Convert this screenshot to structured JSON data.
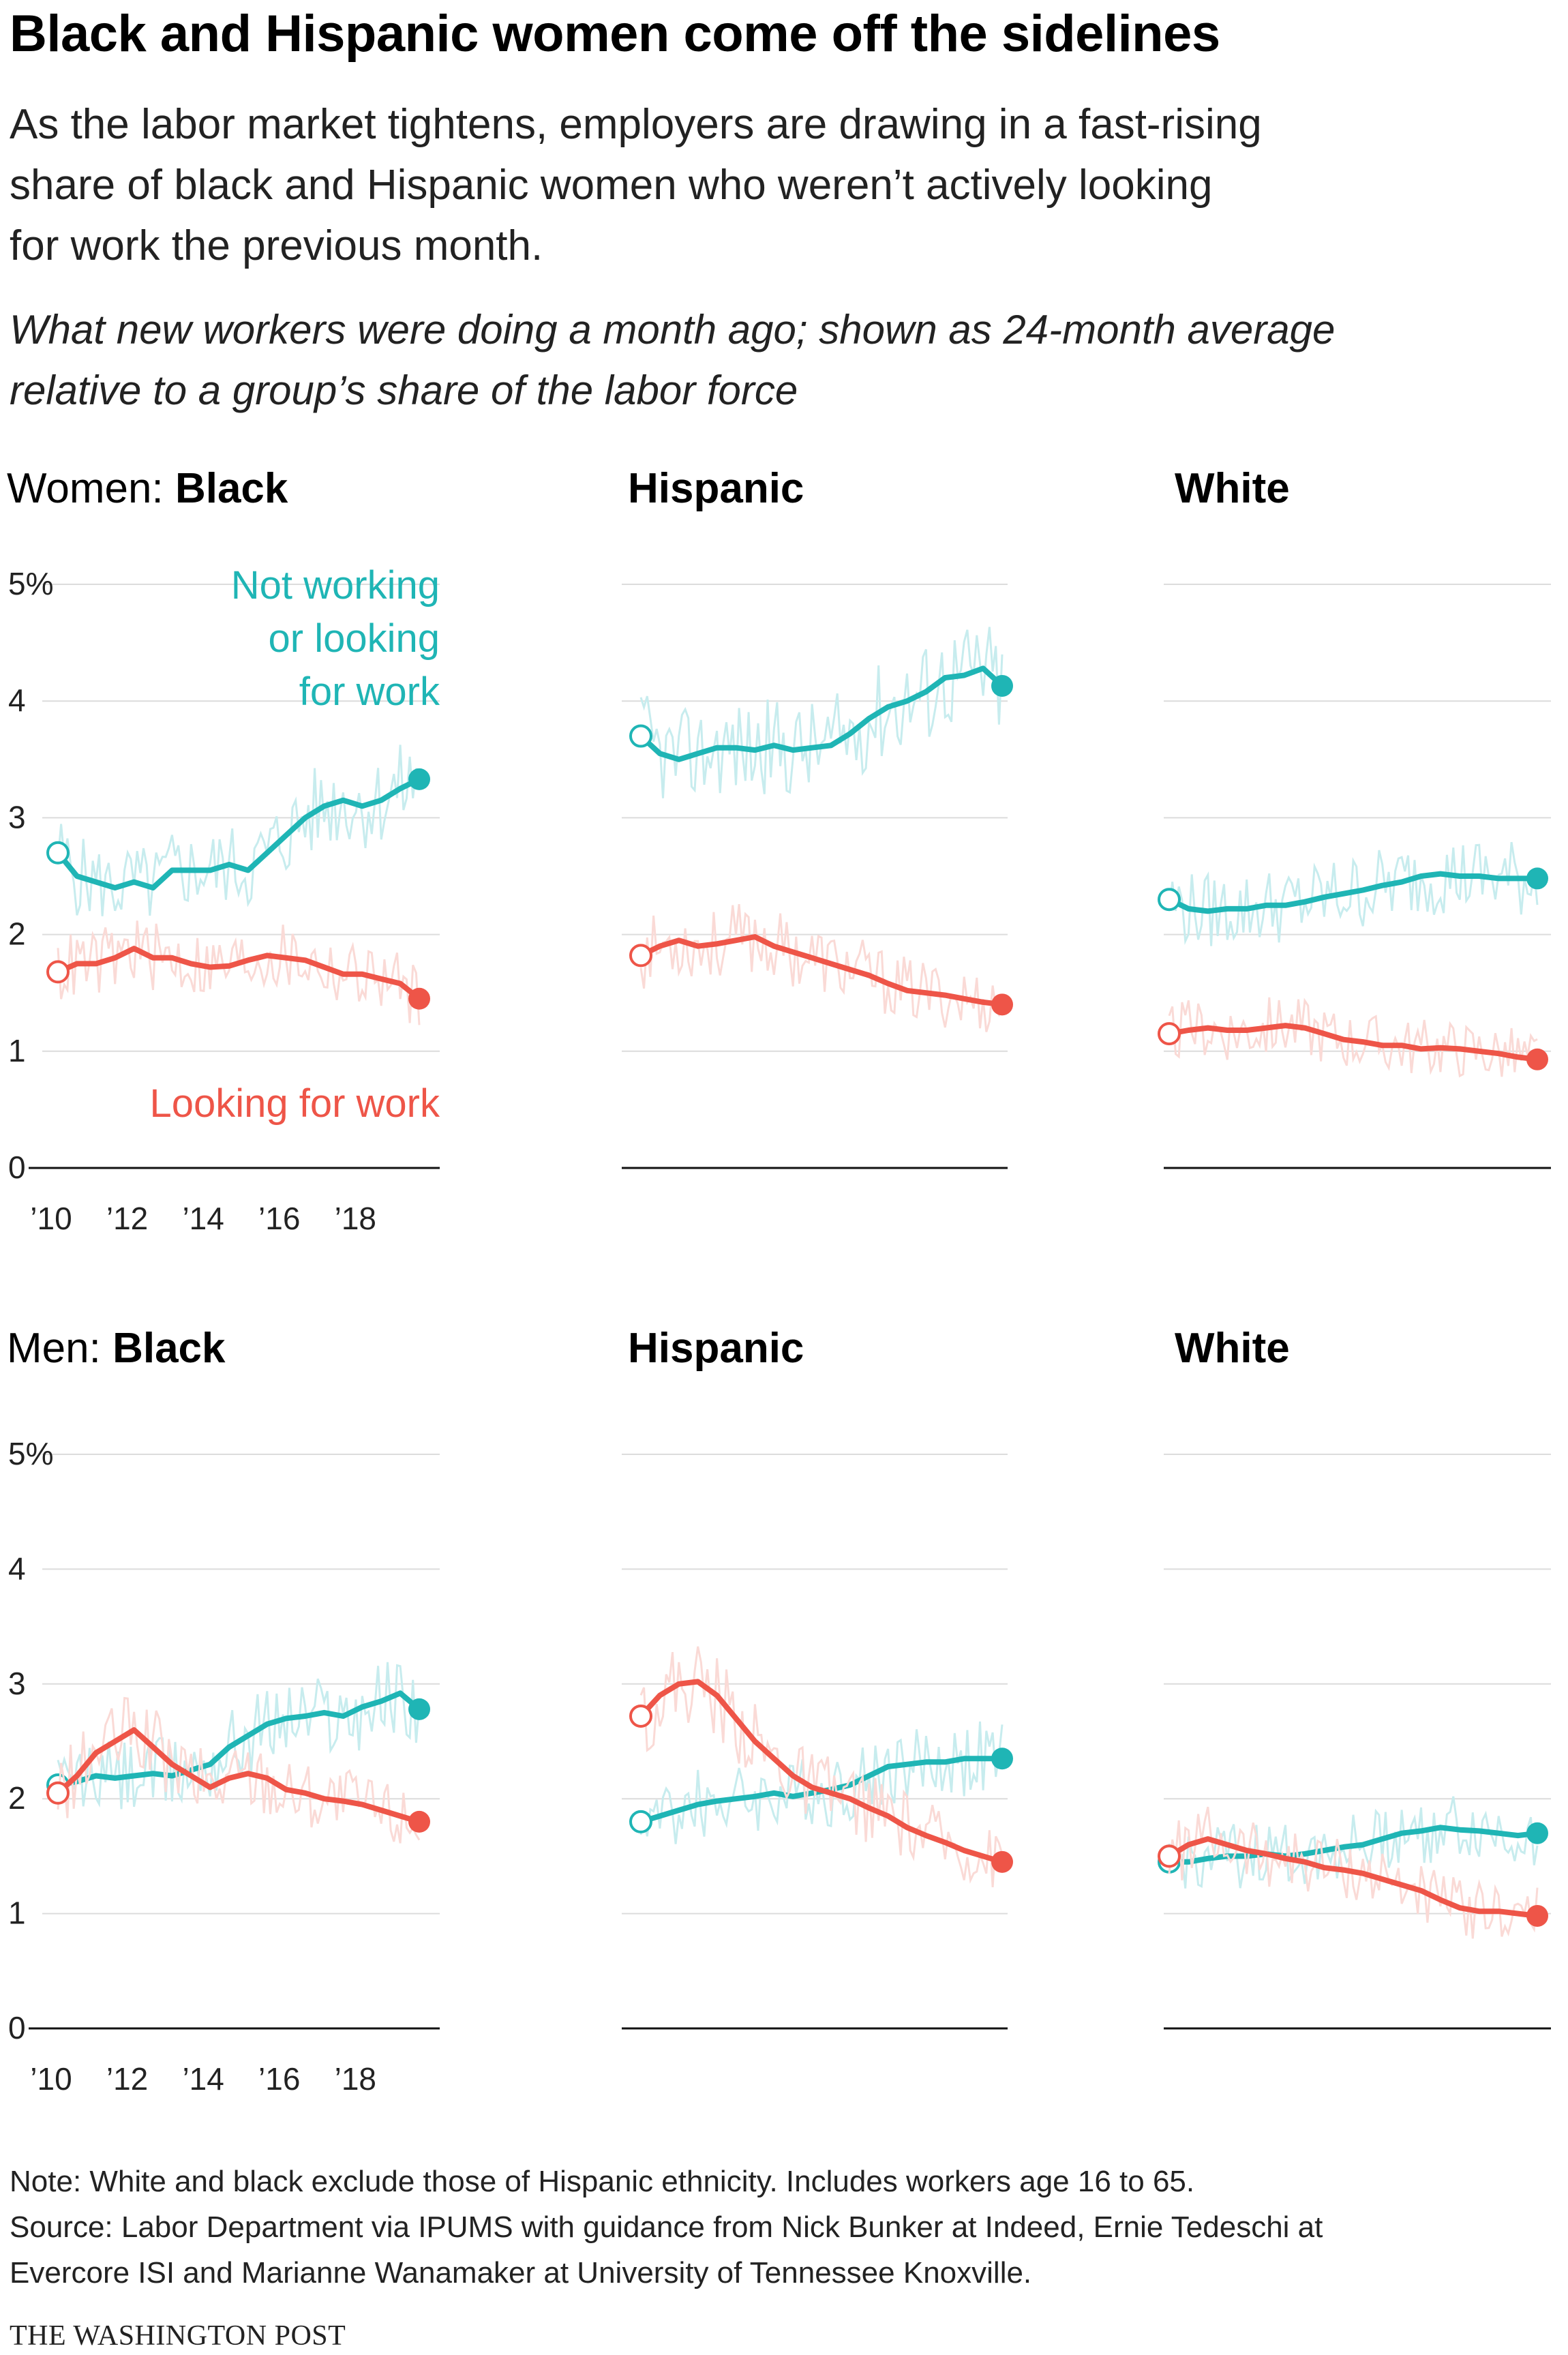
{
  "header": {
    "title": "Black and Hispanic women come off the sidelines",
    "subtitle": "As the labor market tightens, employers are drawing in a fast-rising\nshare of black and Hispanic women who weren’t actively looking\nfor work the previous month.",
    "dek": "What new workers were doing a month ago; shown as 24-month average\nrelative to a group’s share of the labor force"
  },
  "labels": {
    "women_lead": "Women: ",
    "men_lead": "Men: ",
    "black": "Black",
    "hispanic": "Hispanic",
    "white": "White",
    "annotation_not_working_1": "Not working",
    "annotation_not_working_2": "or looking",
    "annotation_not_working_3": "for work",
    "annotation_looking": "Looking for work"
  },
  "footer": {
    "note": "Note: White and black exclude those of Hispanic ethnicity. Includes workers age 16 to 65.\nSource: Labor Department via IPUMS with guidance from Nick Bunker at Indeed, Ernie Tedeschi at\nEvercore ISI and Marianne Wanamaker at University of Tennessee Knoxville.",
    "credit": "THE WASHINGTON POST"
  },
  "colors": {
    "not_working": "#1fb5b5",
    "not_working_light": "#c7ecee",
    "looking": "#ee5548",
    "looking_light": "#fadad6",
    "grid": "#dcdcdc",
    "axis": "#111111",
    "tick_text": "#222222"
  },
  "chart_data": [
    {
      "type": "line",
      "panel": "Women: Black",
      "y_ticks": [
        "0",
        "1",
        "2",
        "3",
        "4",
        "5%"
      ],
      "x_ticks": [
        "’10",
        "’12",
        "’14",
        "’16",
        "’18"
      ],
      "ylim": [
        0,
        5
      ],
      "x_range": [
        2010,
        2019.5
      ],
      "series": [
        {
          "name": "Not working or looking for work",
          "key": "not_working",
          "x": [
            2010,
            2010.5,
            2011,
            2011.5,
            2012,
            2012.5,
            2013,
            2013.5,
            2014,
            2014.5,
            2015,
            2015.5,
            2016,
            2016.5,
            2017,
            2017.5,
            2018,
            2018.5,
            2019,
            2019.5
          ],
          "y": [
            2.7,
            2.5,
            2.45,
            2.4,
            2.45,
            2.4,
            2.55,
            2.55,
            2.55,
            2.6,
            2.55,
            2.7,
            2.85,
            3.0,
            3.1,
            3.15,
            3.1,
            3.15,
            3.25,
            3.33
          ]
        },
        {
          "name": "Looking for work",
          "key": "looking",
          "x": [
            2010,
            2010.5,
            2011,
            2011.5,
            2012,
            2012.5,
            2013,
            2013.5,
            2014,
            2014.5,
            2015,
            2015.5,
            2016,
            2016.5,
            2017,
            2017.5,
            2018,
            2018.5,
            2019,
            2019.5
          ],
          "y": [
            1.68,
            1.75,
            1.75,
            1.8,
            1.88,
            1.8,
            1.8,
            1.75,
            1.72,
            1.73,
            1.78,
            1.82,
            1.8,
            1.78,
            1.72,
            1.66,
            1.66,
            1.62,
            1.58,
            1.45
          ]
        }
      ]
    },
    {
      "type": "line",
      "panel": "Women: Hispanic",
      "ylim": [
        0,
        5
      ],
      "x_range": [
        2010,
        2019.5
      ],
      "series": [
        {
          "name": "Not working or looking for work",
          "key": "not_working",
          "x": [
            2010,
            2010.5,
            2011,
            2011.5,
            2012,
            2012.5,
            2013,
            2013.5,
            2014,
            2014.5,
            2015,
            2015.5,
            2016,
            2016.5,
            2017,
            2017.5,
            2018,
            2018.5,
            2019,
            2019.5
          ],
          "y": [
            3.7,
            3.55,
            3.5,
            3.55,
            3.6,
            3.6,
            3.58,
            3.62,
            3.58,
            3.6,
            3.62,
            3.72,
            3.85,
            3.95,
            4.0,
            4.08,
            4.2,
            4.22,
            4.28,
            4.13
          ]
        },
        {
          "name": "Looking for work",
          "key": "looking",
          "x": [
            2010,
            2010.5,
            2011,
            2011.5,
            2012,
            2012.5,
            2013,
            2013.5,
            2014,
            2014.5,
            2015,
            2015.5,
            2016,
            2016.5,
            2017,
            2017.5,
            2018,
            2018.5,
            2019,
            2019.5
          ],
          "y": [
            1.82,
            1.9,
            1.95,
            1.9,
            1.92,
            1.95,
            1.98,
            1.9,
            1.85,
            1.8,
            1.75,
            1.7,
            1.65,
            1.58,
            1.52,
            1.5,
            1.48,
            1.45,
            1.42,
            1.4
          ]
        }
      ]
    },
    {
      "type": "line",
      "panel": "Women: White",
      "ylim": [
        0,
        5
      ],
      "x_range": [
        2010,
        2019.5
      ],
      "series": [
        {
          "name": "Not working or looking for work",
          "key": "not_working",
          "x": [
            2010,
            2010.5,
            2011,
            2011.5,
            2012,
            2012.5,
            2013,
            2013.5,
            2014,
            2014.5,
            2015,
            2015.5,
            2016,
            2016.5,
            2017,
            2017.5,
            2018,
            2018.5,
            2019,
            2019.5
          ],
          "y": [
            2.3,
            2.22,
            2.2,
            2.22,
            2.22,
            2.25,
            2.25,
            2.28,
            2.32,
            2.35,
            2.38,
            2.42,
            2.45,
            2.5,
            2.52,
            2.5,
            2.5,
            2.48,
            2.48,
            2.48
          ]
        },
        {
          "name": "Looking for work",
          "key": "looking",
          "x": [
            2010,
            2010.5,
            2011,
            2011.5,
            2012,
            2012.5,
            2013,
            2013.5,
            2014,
            2014.5,
            2015,
            2015.5,
            2016,
            2016.5,
            2017,
            2017.5,
            2018,
            2018.5,
            2019,
            2019.5
          ],
          "y": [
            1.15,
            1.18,
            1.2,
            1.18,
            1.18,
            1.2,
            1.22,
            1.2,
            1.15,
            1.1,
            1.08,
            1.05,
            1.05,
            1.02,
            1.03,
            1.02,
            1.0,
            0.98,
            0.95,
            0.93
          ]
        }
      ]
    },
    {
      "type": "line",
      "panel": "Men: Black",
      "y_ticks": [
        "0",
        "1",
        "2",
        "3",
        "4",
        "5%"
      ],
      "x_ticks": [
        "’10",
        "’12",
        "’14",
        "’16",
        "’18"
      ],
      "ylim": [
        0,
        5
      ],
      "x_range": [
        2010,
        2019.5
      ],
      "series": [
        {
          "name": "Not working or looking for work",
          "key": "not_working",
          "x": [
            2010,
            2010.5,
            2011,
            2011.5,
            2012,
            2012.5,
            2013,
            2013.5,
            2014,
            2014.5,
            2015,
            2015.5,
            2016,
            2016.5,
            2017,
            2017.5,
            2018,
            2018.5,
            2019,
            2019.5
          ],
          "y": [
            2.12,
            2.15,
            2.2,
            2.18,
            2.2,
            2.22,
            2.2,
            2.25,
            2.3,
            2.45,
            2.55,
            2.65,
            2.7,
            2.72,
            2.75,
            2.72,
            2.8,
            2.85,
            2.92,
            2.78
          ]
        },
        {
          "name": "Looking for work",
          "key": "looking",
          "x": [
            2010,
            2010.5,
            2011,
            2011.5,
            2012,
            2012.5,
            2013,
            2013.5,
            2014,
            2014.5,
            2015,
            2015.5,
            2016,
            2016.5,
            2017,
            2017.5,
            2018,
            2018.5,
            2019,
            2019.5
          ],
          "y": [
            2.05,
            2.2,
            2.4,
            2.5,
            2.6,
            2.45,
            2.3,
            2.2,
            2.1,
            2.18,
            2.22,
            2.18,
            2.08,
            2.05,
            2.0,
            1.98,
            1.95,
            1.9,
            1.85,
            1.8
          ]
        }
      ]
    },
    {
      "type": "line",
      "panel": "Men: Hispanic",
      "ylim": [
        0,
        5
      ],
      "x_range": [
        2010,
        2019.5
      ],
      "series": [
        {
          "name": "Not working or looking for work",
          "key": "not_working",
          "x": [
            2010,
            2010.5,
            2011,
            2011.5,
            2012,
            2012.5,
            2013,
            2013.5,
            2014,
            2014.5,
            2015,
            2015.5,
            2016,
            2016.5,
            2017,
            2017.5,
            2018,
            2018.5,
            2019,
            2019.5
          ],
          "y": [
            1.8,
            1.85,
            1.9,
            1.95,
            1.98,
            2.0,
            2.02,
            2.05,
            2.02,
            2.05,
            2.08,
            2.12,
            2.2,
            2.28,
            2.3,
            2.32,
            2.32,
            2.35,
            2.35,
            2.35
          ]
        },
        {
          "name": "Looking for work",
          "key": "looking",
          "x": [
            2010,
            2010.5,
            2011,
            2011.5,
            2012,
            2012.5,
            2013,
            2013.5,
            2014,
            2014.5,
            2015,
            2015.5,
            2016,
            2016.5,
            2017,
            2017.5,
            2018,
            2018.5,
            2019,
            2019.5
          ],
          "y": [
            2.72,
            2.9,
            3.0,
            3.02,
            2.9,
            2.7,
            2.5,
            2.35,
            2.2,
            2.1,
            2.05,
            2.0,
            1.92,
            1.85,
            1.75,
            1.68,
            1.62,
            1.55,
            1.5,
            1.45
          ]
        }
      ]
    },
    {
      "type": "line",
      "panel": "Men: White",
      "ylim": [
        0,
        5
      ],
      "x_range": [
        2010,
        2019.5
      ],
      "series": [
        {
          "name": "Not working or looking for work",
          "key": "not_working",
          "x": [
            2010,
            2010.5,
            2011,
            2011.5,
            2012,
            2012.5,
            2013,
            2013.5,
            2014,
            2014.5,
            2015,
            2015.5,
            2016,
            2016.5,
            2017,
            2017.5,
            2018,
            2018.5,
            2019,
            2019.5
          ],
          "y": [
            1.45,
            1.45,
            1.48,
            1.5,
            1.5,
            1.52,
            1.5,
            1.52,
            1.55,
            1.58,
            1.6,
            1.65,
            1.7,
            1.72,
            1.75,
            1.73,
            1.72,
            1.7,
            1.68,
            1.7
          ]
        },
        {
          "name": "Looking for work",
          "key": "looking",
          "x": [
            2010,
            2010.5,
            2011,
            2011.5,
            2012,
            2012.5,
            2013,
            2013.5,
            2014,
            2014.5,
            2015,
            2015.5,
            2016,
            2016.5,
            2017,
            2017.5,
            2018,
            2018.5,
            2019,
            2019.5
          ],
          "y": [
            1.5,
            1.6,
            1.65,
            1.6,
            1.55,
            1.52,
            1.48,
            1.45,
            1.4,
            1.38,
            1.35,
            1.3,
            1.25,
            1.2,
            1.12,
            1.05,
            1.02,
            1.02,
            1.0,
            0.98
          ]
        }
      ]
    }
  ]
}
